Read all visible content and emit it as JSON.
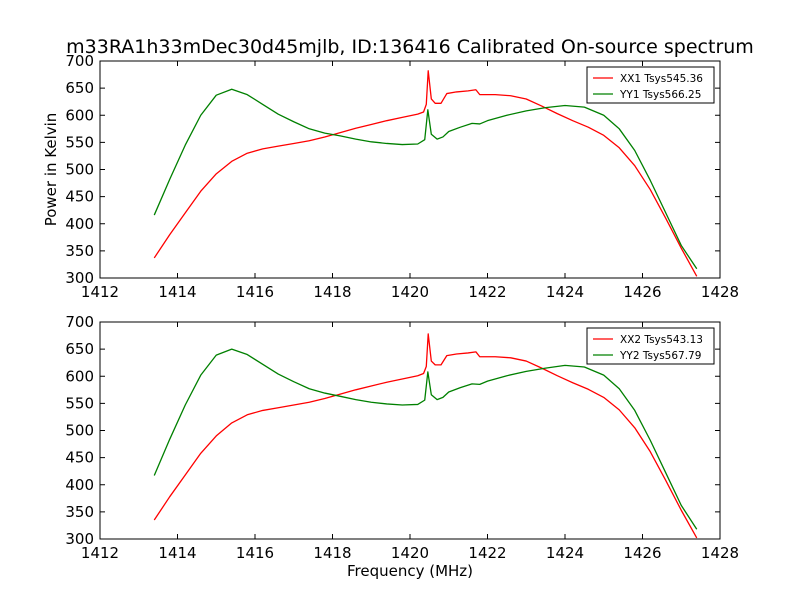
{
  "figure": {
    "title": "m33RA1h33mDec30d45mjlb, ID:136416 Calibrated On-source spectrum"
  },
  "chart_data": [
    {
      "type": "line",
      "title": "m33RA1h33mDec30d45mjlb, ID:136416 Calibrated On-source spectrum",
      "xlabel": "",
      "ylabel": "Power in Kelvin",
      "xlim": [
        1412,
        1428
      ],
      "ylim": [
        300,
        700
      ],
      "xticks": [
        1412,
        1414,
        1416,
        1418,
        1420,
        1422,
        1424,
        1426,
        1428
      ],
      "yticks": [
        300,
        350,
        400,
        450,
        500,
        550,
        600,
        650,
        700
      ],
      "grid": false,
      "legend_position": "top-right",
      "series": [
        {
          "name": "XX1 Tsys545.36",
          "color": "#ff0000",
          "x": [
            1413.4,
            1413.8,
            1414.2,
            1414.6,
            1415.0,
            1415.4,
            1415.8,
            1416.2,
            1416.6,
            1417.0,
            1417.4,
            1417.8,
            1418.2,
            1418.6,
            1419.0,
            1419.4,
            1419.8,
            1420.2,
            1420.35,
            1420.42,
            1420.47,
            1420.55,
            1420.65,
            1420.8,
            1420.95,
            1421.2,
            1421.5,
            1421.7,
            1421.8,
            1422.2,
            1422.6,
            1423.0,
            1423.4,
            1423.8,
            1424.2,
            1424.6,
            1425.0,
            1425.4,
            1425.8,
            1426.2,
            1426.6,
            1427.0,
            1427.4
          ],
          "y": [
            337,
            380,
            420,
            460,
            492,
            515,
            530,
            538,
            543,
            548,
            553,
            560,
            568,
            576,
            583,
            590,
            596,
            602,
            606,
            620,
            682,
            630,
            622,
            622,
            640,
            643,
            645,
            647,
            638,
            638,
            636,
            630,
            617,
            603,
            590,
            578,
            563,
            540,
            507,
            463,
            410,
            355,
            303
          ]
        },
        {
          "name": "YY1 Tsys566.25",
          "color": "#008000",
          "x": [
            1413.4,
            1413.8,
            1414.2,
            1414.6,
            1415.0,
            1415.4,
            1415.8,
            1416.2,
            1416.6,
            1417.0,
            1417.4,
            1417.8,
            1418.2,
            1418.6,
            1419.0,
            1419.4,
            1419.8,
            1420.2,
            1420.38,
            1420.46,
            1420.55,
            1420.7,
            1420.85,
            1421.0,
            1421.3,
            1421.6,
            1421.8,
            1422.0,
            1422.5,
            1423.0,
            1423.5,
            1424.0,
            1424.5,
            1425.0,
            1425.4,
            1425.8,
            1426.2,
            1426.6,
            1427.0,
            1427.4
          ],
          "y": [
            416,
            482,
            545,
            600,
            637,
            648,
            638,
            620,
            602,
            588,
            575,
            567,
            562,
            556,
            551,
            548,
            546,
            547,
            555,
            610,
            565,
            556,
            560,
            570,
            578,
            585,
            584,
            590,
            600,
            608,
            614,
            618,
            615,
            600,
            575,
            535,
            480,
            420,
            360,
            317
          ]
        }
      ]
    },
    {
      "type": "line",
      "title": "",
      "xlabel": "Frequency (MHz)",
      "ylabel": "",
      "xlim": [
        1412,
        1428
      ],
      "ylim": [
        300,
        700
      ],
      "xticks": [
        1412,
        1414,
        1416,
        1418,
        1420,
        1422,
        1424,
        1426,
        1428
      ],
      "yticks": [
        300,
        350,
        400,
        450,
        500,
        550,
        600,
        650,
        700
      ],
      "grid": false,
      "legend_position": "top-right",
      "series": [
        {
          "name": "XX2 Tsys543.13",
          "color": "#ff0000",
          "x": [
            1413.4,
            1413.8,
            1414.2,
            1414.6,
            1415.0,
            1415.4,
            1415.8,
            1416.2,
            1416.6,
            1417.0,
            1417.4,
            1417.8,
            1418.2,
            1418.6,
            1419.0,
            1419.4,
            1419.8,
            1420.2,
            1420.35,
            1420.42,
            1420.47,
            1420.55,
            1420.65,
            1420.8,
            1420.95,
            1421.2,
            1421.5,
            1421.7,
            1421.8,
            1422.2,
            1422.6,
            1423.0,
            1423.4,
            1423.8,
            1424.2,
            1424.6,
            1425.0,
            1425.4,
            1425.8,
            1426.2,
            1426.6,
            1427.0,
            1427.4
          ],
          "y": [
            335,
            378,
            418,
            458,
            490,
            514,
            529,
            537,
            542,
            547,
            552,
            559,
            567,
            575,
            582,
            589,
            595,
            601,
            605,
            618,
            678,
            628,
            621,
            621,
            638,
            641,
            643,
            645,
            636,
            636,
            634,
            628,
            615,
            601,
            588,
            576,
            561,
            538,
            505,
            461,
            408,
            353,
            302
          ]
        },
        {
          "name": "YY2 Tsys567.79",
          "color": "#008000",
          "x": [
            1413.4,
            1413.8,
            1414.2,
            1414.6,
            1415.0,
            1415.4,
            1415.8,
            1416.2,
            1416.6,
            1417.0,
            1417.4,
            1417.8,
            1418.2,
            1418.6,
            1419.0,
            1419.4,
            1419.8,
            1420.2,
            1420.38,
            1420.46,
            1420.55,
            1420.7,
            1420.85,
            1421.0,
            1421.3,
            1421.6,
            1421.8,
            1422.0,
            1422.5,
            1423.0,
            1423.5,
            1424.0,
            1424.5,
            1425.0,
            1425.4,
            1425.8,
            1426.2,
            1426.6,
            1427.0,
            1427.4
          ],
          "y": [
            417,
            484,
            547,
            602,
            639,
            650,
            640,
            622,
            604,
            590,
            577,
            569,
            563,
            557,
            552,
            549,
            547,
            548,
            556,
            608,
            566,
            557,
            561,
            571,
            579,
            586,
            585,
            591,
            601,
            609,
            615,
            620,
            617,
            602,
            577,
            537,
            482,
            422,
            362,
            318
          ]
        }
      ]
    }
  ]
}
